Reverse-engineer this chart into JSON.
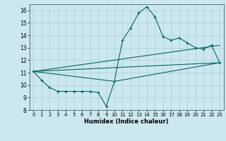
{
  "title": "",
  "xlabel": "Humidex (Indice chaleur)",
  "bg_color": "#cce8ee",
  "grid_color": "#aacece",
  "line_color": "#006666",
  "xlim": [
    -0.5,
    23.5
  ],
  "ylim": [
    8,
    16.5
  ],
  "xticks": [
    0,
    1,
    2,
    3,
    4,
    5,
    6,
    7,
    8,
    9,
    10,
    11,
    12,
    13,
    14,
    15,
    16,
    17,
    18,
    19,
    20,
    21,
    22,
    23
  ],
  "yticks": [
    8,
    9,
    10,
    11,
    12,
    13,
    14,
    15,
    16
  ],
  "line1_x": [
    0,
    1,
    2,
    3,
    4,
    5,
    6,
    7,
    8,
    9,
    10,
    11,
    12,
    13,
    14,
    15,
    16,
    17,
    18,
    19,
    20,
    21,
    22,
    23
  ],
  "line1_y": [
    11.1,
    10.4,
    9.8,
    9.5,
    9.5,
    9.5,
    9.5,
    9.5,
    9.4,
    8.3,
    10.3,
    13.6,
    14.6,
    15.8,
    16.3,
    15.5,
    13.9,
    13.6,
    13.8,
    13.4,
    13.0,
    12.9,
    13.2,
    11.8
  ],
  "line2_x": [
    0,
    10,
    23
  ],
  "line2_y": [
    11.1,
    10.3,
    11.8
  ],
  "line3_x": [
    0,
    23
  ],
  "line3_y": [
    11.1,
    13.2
  ],
  "line4_x": [
    0,
    23
  ],
  "line4_y": [
    11.1,
    11.8
  ]
}
